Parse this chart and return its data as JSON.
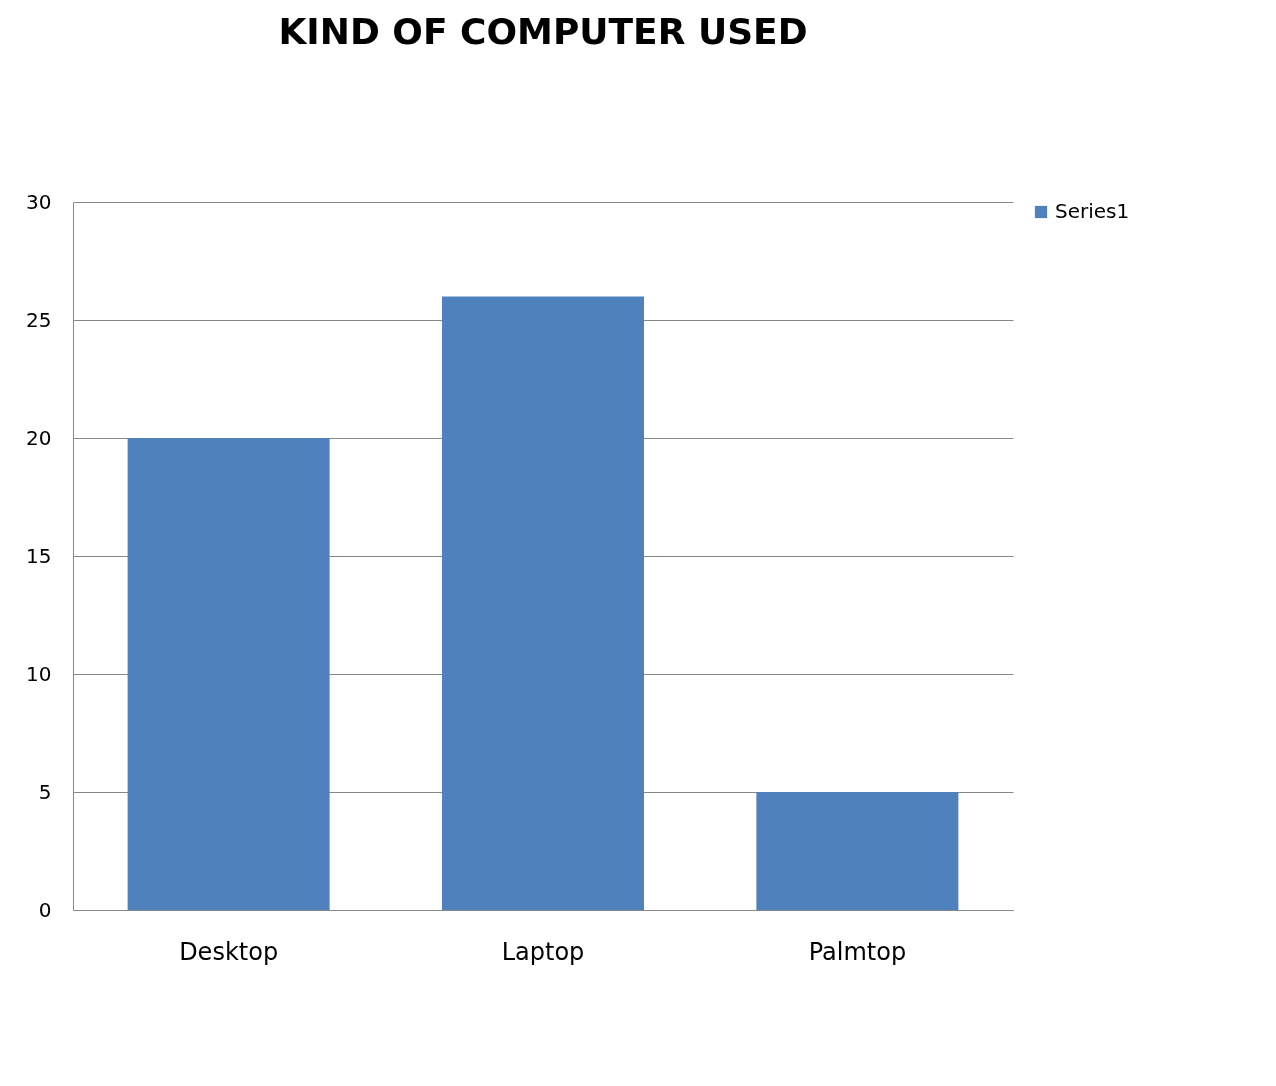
{
  "chart_data": {
    "type": "bar",
    "title": "KIND OF COMPUTER USED",
    "categories": [
      "Desktop",
      "Laptop",
      "Palmtop"
    ],
    "series": [
      {
        "name": "Series1",
        "color": "#4f81bd",
        "values": [
          20,
          26,
          5
        ]
      }
    ],
    "ylim": [
      0,
      30
    ],
    "yticks": [
      0,
      5,
      10,
      15,
      20,
      25,
      30
    ],
    "grid": "y",
    "legend": "right"
  }
}
